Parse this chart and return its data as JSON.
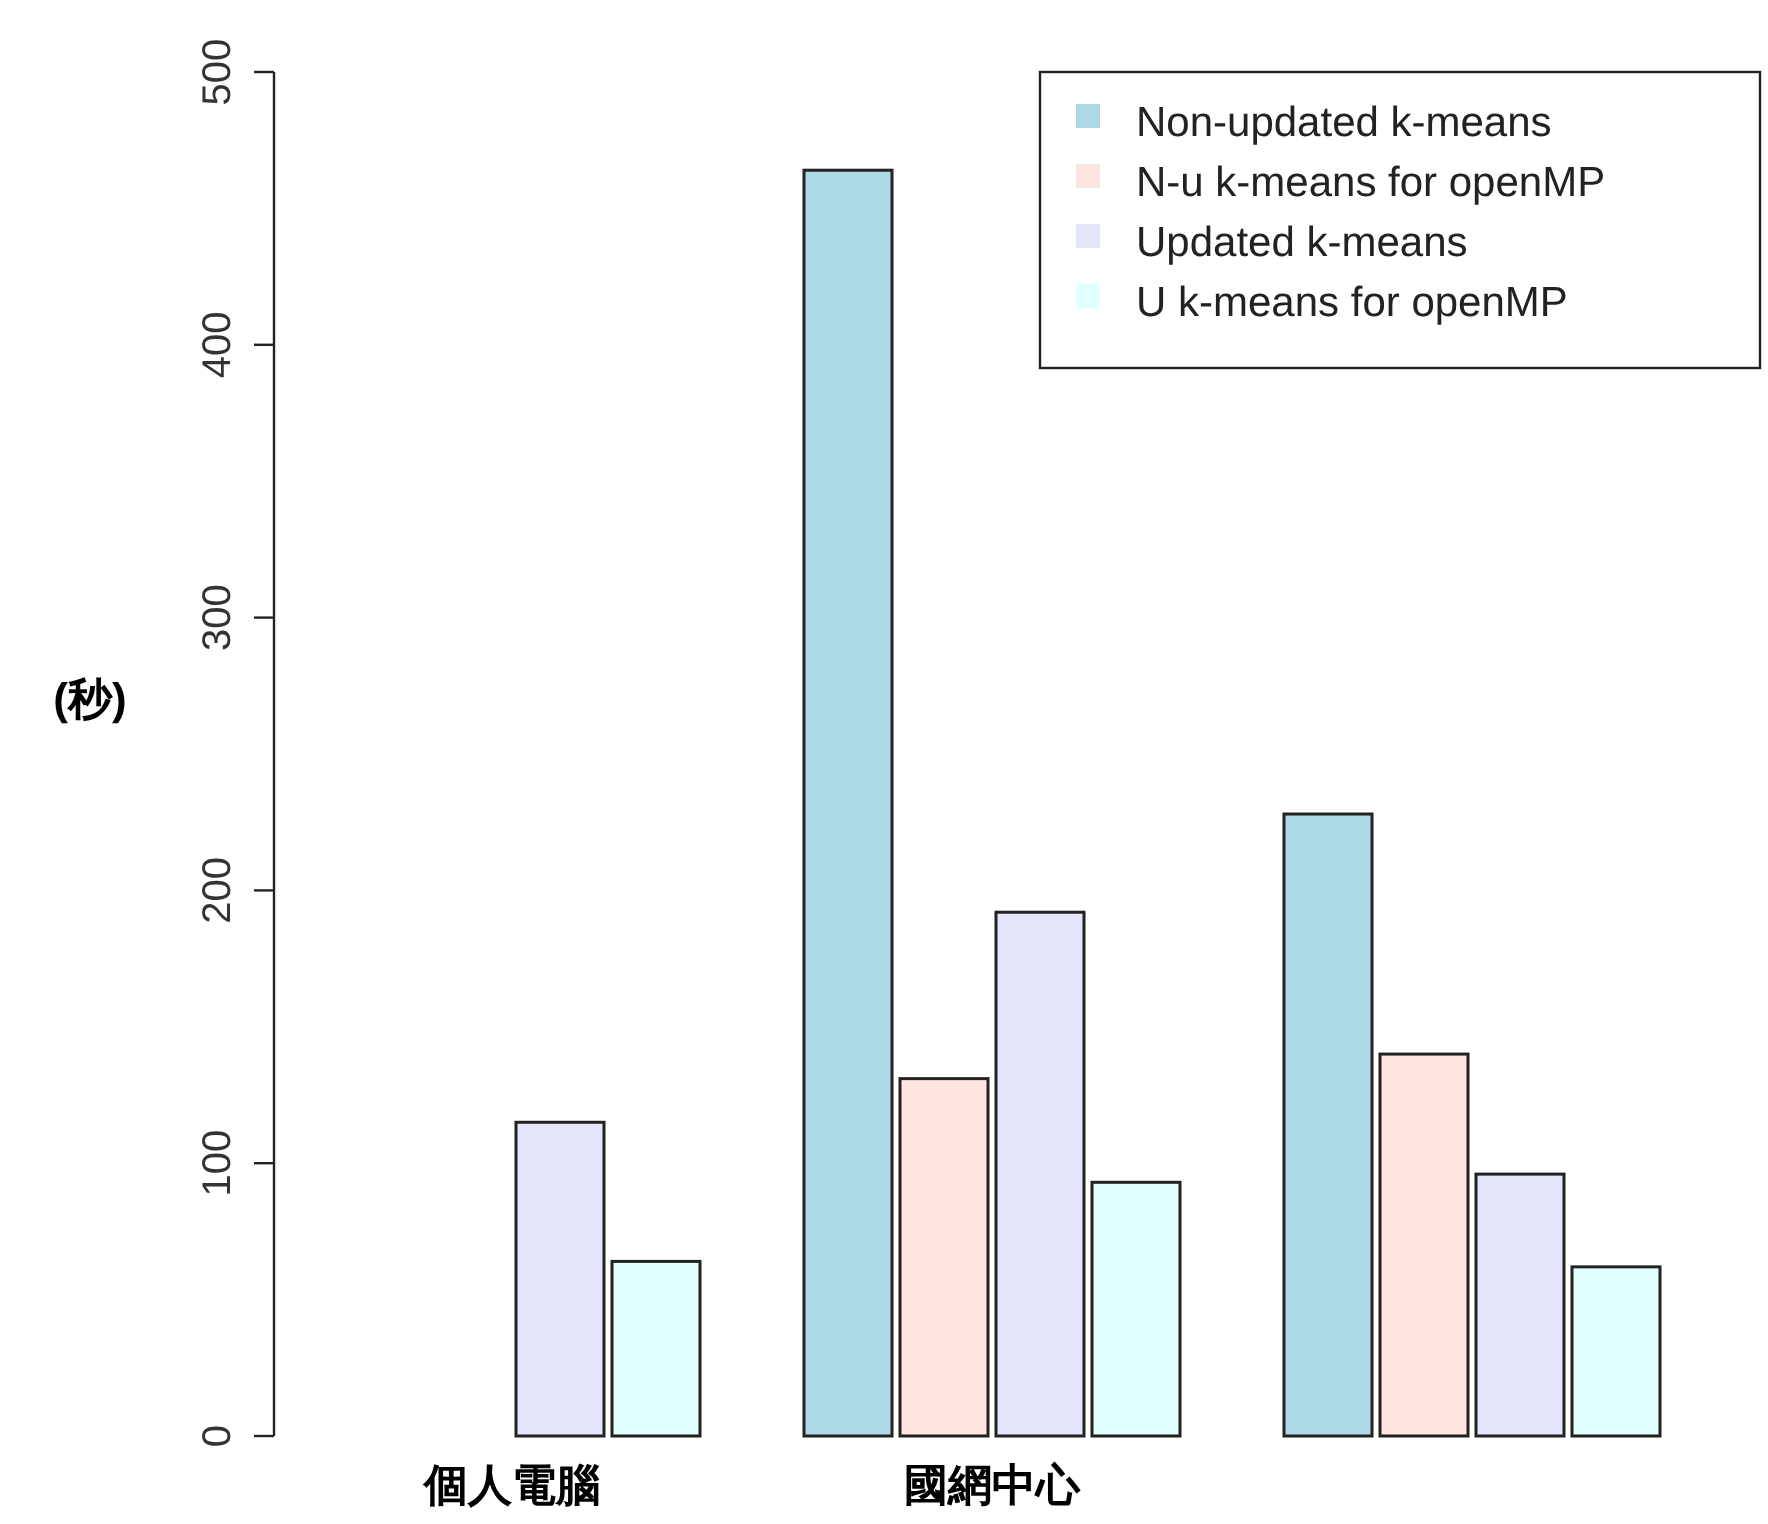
{
  "chart_data": {
    "type": "bar",
    "ylabel": "(秒)",
    "categories": [
      "個人電腦",
      "國網中心",
      null
    ],
    "series": [
      {
        "name": "Non-updated k-means",
        "color": "#add8e6",
        "values": [
          0,
          464,
          228
        ]
      },
      {
        "name": "N-u k-means for openMP",
        "color": "#ffe4e1",
        "values": [
          0,
          131,
          140
        ]
      },
      {
        "name": "Updated k-means",
        "color": "#e6e6fa",
        "values": [
          115,
          192,
          96
        ]
      },
      {
        "name": "U k-means for openMP",
        "color": "#e0ffff",
        "values": [
          64,
          93,
          62
        ]
      }
    ],
    "ylim": [
      0,
      500
    ],
    "yticks": [
      0,
      100,
      200,
      300,
      400,
      500
    ],
    "grid": false,
    "legend": "top right"
  }
}
